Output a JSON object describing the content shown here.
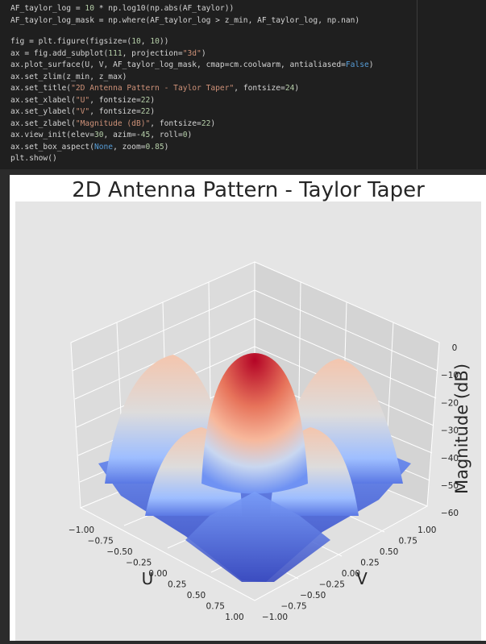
{
  "code": {
    "blocks": [
      [
        "AF_taylor_log = 10 * np.log10(np.abs(AF_taylor))",
        "AF_taylor_log_mask = np.where(AF_taylor_log > z_min, AF_taylor_log, np.nan)"
      ],
      [
        "fig = plt.figure(figsize=(10, 10))",
        "ax = fig.add_subplot(111, projection=\"3d\")",
        "ax.plot_surface(U, V, AF_taylor_log_mask, cmap=cm.coolwarm, antialiased=False)",
        "ax.set_zlim(z_min, z_max)",
        "ax.set_title(\"2D Antenna Pattern - Taylor Taper\", fontsize=24)",
        "ax.set_xlabel(\"U\", fontsize=22)",
        "ax.set_ylabel(\"V\", fontsize=22)",
        "ax.set_zlabel(\"Magnitude (dB)\", fontsize=22)",
        "ax.view_init(elev=30, azim=-45, roll=0)",
        "ax.set_box_aspect(None, zoom=0.85)",
        "plt.show()"
      ]
    ]
  },
  "figure": {
    "title": "2D Antenna Pattern - Taylor Taper",
    "xlabel": "U",
    "ylabel": "V",
    "zlabel": "Magnitude (dB)",
    "xticks": [
      "−1.00",
      "−0.75",
      "−0.50",
      "−0.25",
      "0.00",
      "0.25",
      "0.50",
      "0.75",
      "1.00"
    ],
    "yticks": [
      "−1.00",
      "−0.75",
      "−0.50",
      "−0.25",
      "0.00",
      "0.25",
      "0.50",
      "0.75",
      "1.00"
    ],
    "zticks": [
      "0",
      "−10",
      "−20",
      "−30",
      "−40",
      "−50",
      "−60"
    ]
  }
}
